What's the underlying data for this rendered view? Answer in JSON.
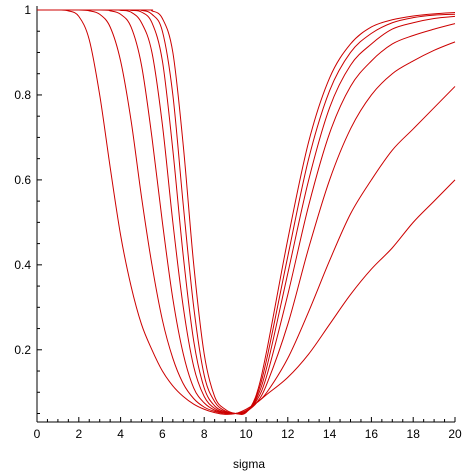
{
  "chart_data": {
    "type": "line",
    "title": "",
    "xlabel": "sigma",
    "ylabel": "",
    "xlim": [
      0,
      20
    ],
    "ylim": [
      0.03,
      1.0
    ],
    "x_ticks": [
      0,
      2,
      4,
      6,
      8,
      10,
      12,
      14,
      16,
      18,
      20
    ],
    "y_ticks": [
      0.2,
      0.4,
      0.6,
      0.8,
      1
    ],
    "grid": false,
    "legend": "none",
    "line_color": "#cc0000",
    "series": [
      {
        "points": [
          [
            0,
            1
          ],
          [
            1,
            1
          ],
          [
            1.5,
            0.998
          ],
          [
            2,
            0.985
          ],
          [
            2.5,
            0.93
          ],
          [
            3,
            0.8
          ],
          [
            3.5,
            0.63
          ],
          [
            4,
            0.47
          ],
          [
            4.5,
            0.35
          ],
          [
            5,
            0.26
          ],
          [
            5.5,
            0.2
          ],
          [
            6,
            0.15
          ],
          [
            6.5,
            0.115
          ],
          [
            7,
            0.09
          ],
          [
            7.5,
            0.072
          ],
          [
            8,
            0.06
          ],
          [
            8.5,
            0.052
          ],
          [
            9,
            0.048
          ],
          [
            9.5,
            0.05
          ],
          [
            10,
            0.06
          ],
          [
            10.5,
            0.075
          ],
          [
            11,
            0.095
          ],
          [
            12,
            0.135
          ],
          [
            13,
            0.19
          ],
          [
            14,
            0.26
          ],
          [
            15,
            0.33
          ],
          [
            16,
            0.39
          ],
          [
            17,
            0.44
          ],
          [
            18,
            0.5
          ],
          [
            19,
            0.55
          ],
          [
            20,
            0.6
          ]
        ]
      },
      {
        "points": [
          [
            0,
            1
          ],
          [
            2,
            1
          ],
          [
            2.5,
            0.998
          ],
          [
            3,
            0.99
          ],
          [
            3.5,
            0.96
          ],
          [
            4,
            0.88
          ],
          [
            4.5,
            0.74
          ],
          [
            5,
            0.56
          ],
          [
            5.5,
            0.4
          ],
          [
            6,
            0.27
          ],
          [
            6.5,
            0.18
          ],
          [
            7,
            0.12
          ],
          [
            7.5,
            0.085
          ],
          [
            8,
            0.065
          ],
          [
            8.5,
            0.055
          ],
          [
            9,
            0.05
          ],
          [
            9.5,
            0.05
          ],
          [
            10,
            0.057
          ],
          [
            10.5,
            0.075
          ],
          [
            11,
            0.1
          ],
          [
            12,
            0.18
          ],
          [
            13,
            0.29
          ],
          [
            14,
            0.41
          ],
          [
            15,
            0.52
          ],
          [
            16,
            0.6
          ],
          [
            17,
            0.67
          ],
          [
            18,
            0.72
          ],
          [
            19,
            0.77
          ],
          [
            20,
            0.82
          ]
        ]
      },
      {
        "points": [
          [
            0,
            1
          ],
          [
            3,
            1
          ],
          [
            3.5,
            0.998
          ],
          [
            4,
            0.99
          ],
          [
            4.5,
            0.96
          ],
          [
            5,
            0.87
          ],
          [
            5.5,
            0.7
          ],
          [
            6,
            0.5
          ],
          [
            6.5,
            0.32
          ],
          [
            7,
            0.19
          ],
          [
            7.5,
            0.11
          ],
          [
            8,
            0.075
          ],
          [
            8.5,
            0.058
          ],
          [
            9,
            0.052
          ],
          [
            9.5,
            0.05
          ],
          [
            10,
            0.055
          ],
          [
            10.5,
            0.075
          ],
          [
            11,
            0.12
          ],
          [
            12,
            0.26
          ],
          [
            13,
            0.44
          ],
          [
            14,
            0.6
          ],
          [
            15,
            0.72
          ],
          [
            16,
            0.8
          ],
          [
            17,
            0.85
          ],
          [
            18,
            0.88
          ],
          [
            19,
            0.905
          ],
          [
            20,
            0.925
          ]
        ]
      },
      {
        "points": [
          [
            0,
            1
          ],
          [
            3.5,
            1
          ],
          [
            4,
            0.999
          ],
          [
            4.5,
            0.995
          ],
          [
            5,
            0.97
          ],
          [
            5.5,
            0.9
          ],
          [
            6,
            0.73
          ],
          [
            6.5,
            0.5
          ],
          [
            7,
            0.3
          ],
          [
            7.5,
            0.16
          ],
          [
            8,
            0.09
          ],
          [
            8.5,
            0.062
          ],
          [
            9,
            0.052
          ],
          [
            9.5,
            0.05
          ],
          [
            10,
            0.054
          ],
          [
            10.5,
            0.08
          ],
          [
            11,
            0.14
          ],
          [
            12,
            0.33
          ],
          [
            13,
            0.54
          ],
          [
            14,
            0.71
          ],
          [
            15,
            0.82
          ],
          [
            16,
            0.88
          ],
          [
            17,
            0.92
          ],
          [
            18,
            0.94
          ],
          [
            19,
            0.955
          ],
          [
            20,
            0.968
          ]
        ]
      },
      {
        "points": [
          [
            0,
            1
          ],
          [
            4,
            1
          ],
          [
            4.5,
            0.999
          ],
          [
            5,
            0.995
          ],
          [
            5.5,
            0.97
          ],
          [
            6,
            0.88
          ],
          [
            6.5,
            0.67
          ],
          [
            7,
            0.42
          ],
          [
            7.5,
            0.22
          ],
          [
            8,
            0.11
          ],
          [
            8.5,
            0.068
          ],
          [
            9,
            0.054
          ],
          [
            9.5,
            0.05
          ],
          [
            10,
            0.053
          ],
          [
            10.5,
            0.085
          ],
          [
            11,
            0.16
          ],
          [
            12,
            0.38
          ],
          [
            13,
            0.6
          ],
          [
            14,
            0.77
          ],
          [
            15,
            0.87
          ],
          [
            16,
            0.92
          ],
          [
            17,
            0.955
          ],
          [
            18,
            0.97
          ],
          [
            19,
            0.98
          ],
          [
            20,
            0.985
          ]
        ]
      },
      {
        "points": [
          [
            0,
            1
          ],
          [
            4.5,
            1
          ],
          [
            5,
            0.999
          ],
          [
            5.5,
            0.99
          ],
          [
            6,
            0.95
          ],
          [
            6.5,
            0.8
          ],
          [
            7,
            0.54
          ],
          [
            7.5,
            0.3
          ],
          [
            8,
            0.14
          ],
          [
            8.5,
            0.078
          ],
          [
            9,
            0.056
          ],
          [
            9.5,
            0.05
          ],
          [
            10,
            0.053
          ],
          [
            10.5,
            0.09
          ],
          [
            11,
            0.18
          ],
          [
            12,
            0.42
          ],
          [
            13,
            0.65
          ],
          [
            14,
            0.81
          ],
          [
            15,
            0.9
          ],
          [
            16,
            0.945
          ],
          [
            17,
            0.97
          ],
          [
            18,
            0.982
          ],
          [
            19,
            0.988
          ],
          [
            20,
            0.99
          ]
        ]
      },
      {
        "points": [
          [
            0,
            1
          ],
          [
            5,
            1
          ],
          [
            5.5,
            0.998
          ],
          [
            6,
            0.98
          ],
          [
            6.5,
            0.9
          ],
          [
            7,
            0.68
          ],
          [
            7.5,
            0.4
          ],
          [
            8,
            0.19
          ],
          [
            8.5,
            0.09
          ],
          [
            9,
            0.06
          ],
          [
            9.5,
            0.05
          ],
          [
            10,
            0.052
          ],
          [
            10.5,
            0.095
          ],
          [
            11,
            0.2
          ],
          [
            12,
            0.46
          ],
          [
            13,
            0.69
          ],
          [
            14,
            0.84
          ],
          [
            15,
            0.92
          ],
          [
            16,
            0.96
          ],
          [
            17,
            0.977
          ],
          [
            18,
            0.986
          ],
          [
            19,
            0.991
          ],
          [
            20,
            0.994
          ]
        ]
      }
    ]
  }
}
